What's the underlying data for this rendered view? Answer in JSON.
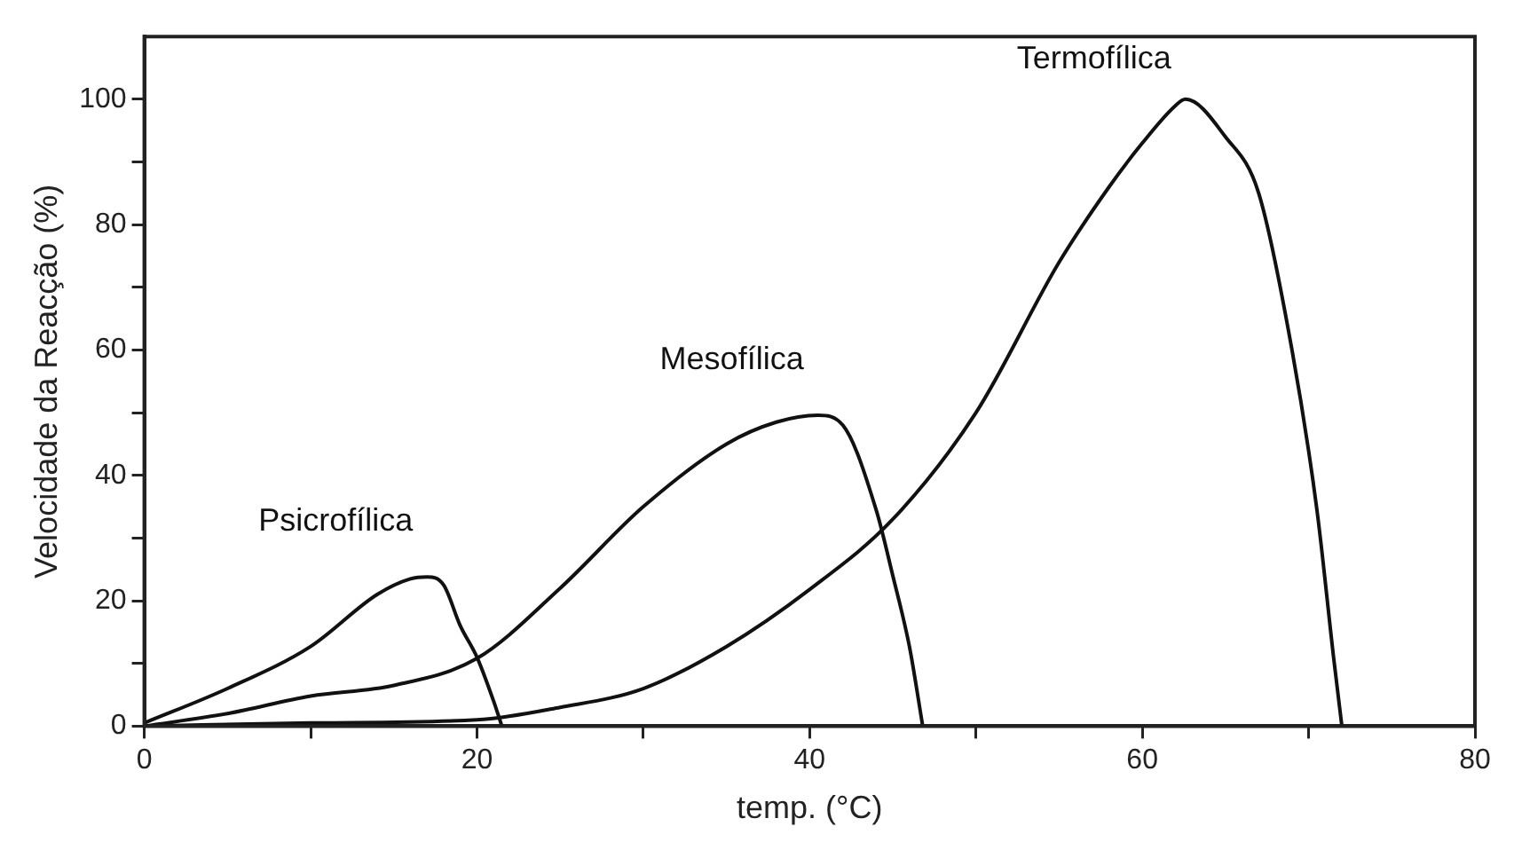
{
  "chart_data": {
    "type": "line",
    "xlabel": "temp. (°C)",
    "ylabel": "Velocidade da Reacção (%)",
    "xlim": [
      0,
      80
    ],
    "ylim": [
      0,
      110
    ],
    "xticks": [
      0,
      {
        "value": 10,
        "label": null
      },
      20,
      {
        "value": 30,
        "label": null
      },
      40,
      {
        "value": 50,
        "label": null
      },
      60,
      {
        "value": 70,
        "label": null
      },
      80
    ],
    "yticks": [
      0,
      {
        "value": 10,
        "label": null
      },
      20,
      {
        "value": 30,
        "label": null
      },
      40,
      {
        "value": 50,
        "label": null
      },
      60,
      {
        "value": 70,
        "label": null
      },
      80,
      {
        "value": 90,
        "label": null
      },
      100
    ],
    "grid": false,
    "legend": false,
    "marker": "none",
    "line_style": "solid",
    "series": [
      {
        "name": "Psicrofílica",
        "color": "#111111",
        "x": [
          0,
          5,
          10,
          14,
          16,
          17,
          18,
          19,
          20,
          21,
          21.5
        ],
        "values": [
          0.5,
          6,
          12.7,
          21,
          23.5,
          23.8,
          22.5,
          16,
          11,
          4,
          0
        ]
      },
      {
        "name": "Mesofílica",
        "color": "#111111",
        "x": [
          0,
          5,
          10,
          15,
          20,
          25,
          30,
          35,
          38,
          40.5,
          42,
          44,
          45,
          46,
          46.8
        ],
        "values": [
          0,
          2,
          4.8,
          6.5,
          10.8,
          22,
          35,
          45,
          48.5,
          49.6,
          48,
          34.5,
          24,
          12.7,
          0
        ]
      },
      {
        "name": "Termofílica",
        "color": "#111111",
        "x": [
          0,
          10,
          20,
          25,
          30,
          35,
          40,
          45,
          50,
          55,
          58,
          60,
          62,
          62.6,
          65,
          67,
          69,
          70.5,
          71.5,
          72
        ],
        "values": [
          0,
          0.5,
          1,
          3,
          6,
          12.7,
          21.8,
          33,
          50,
          74,
          86,
          93,
          99,
          100,
          94,
          85,
          60,
          34.5,
          11,
          0
        ]
      }
    ]
  }
}
